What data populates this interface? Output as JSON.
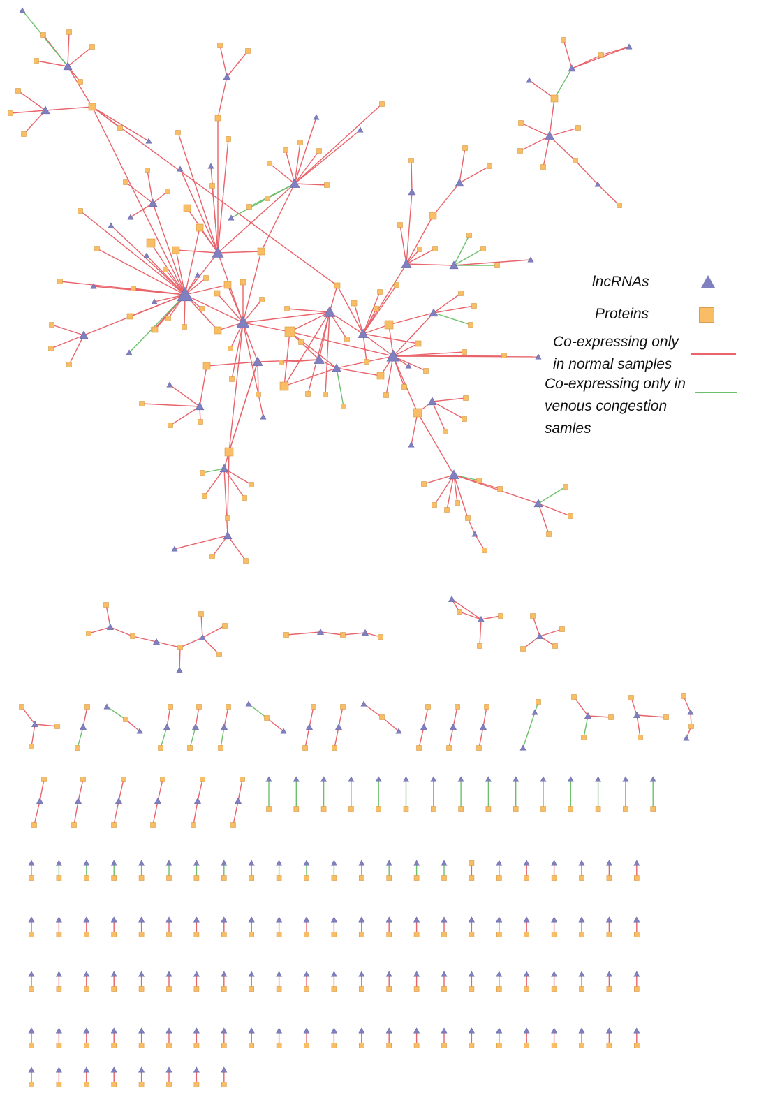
{
  "legend": {
    "lncrna_label": "lncRNAs",
    "protein_label": "Proteins",
    "normal_label_line1": "Co-expressing only",
    "normal_label_line2": "in normal samples",
    "congestion_label_line1": "Co-expressing only in",
    "congestion_label_line2": "venous congestion",
    "congestion_label_line3": "samles"
  },
  "colors": {
    "lncrna": "#8080c0",
    "protein": "#f8bd65",
    "normal_edge": "#e8636a",
    "congestion_edge": "#6cc06c"
  },
  "node_types": [
    "lncRNA",
    "protein"
  ],
  "edge_types": [
    "normal",
    "congestion"
  ]
}
